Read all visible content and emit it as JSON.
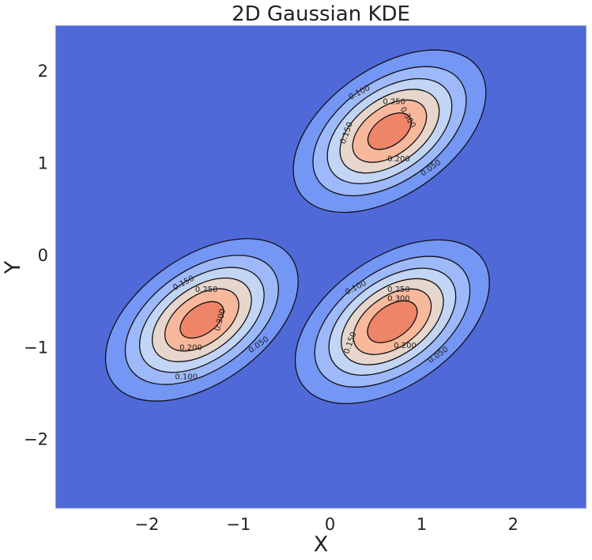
{
  "chart_data": {
    "type": "contour",
    "title": "2D Gaussian KDE",
    "xlabel": "X",
    "ylabel": "Y",
    "xlim": [
      -3.0,
      2.8
    ],
    "ylim": [
      -2.75,
      2.5
    ],
    "xticks": [
      -2,
      -1,
      0,
      1,
      2
    ],
    "yticks": [
      -2,
      -1,
      0,
      1,
      2
    ],
    "xtick_labels": [
      "−2",
      "−1",
      "0",
      "1",
      "2"
    ],
    "ytick_labels": [
      "−2",
      "−1",
      "0",
      "1",
      "2"
    ],
    "grid": false,
    "colormap": "coolwarm",
    "levels": [
      0.0,
      0.05,
      0.1,
      0.15,
      0.2,
      0.25,
      0.3
    ],
    "level_colors": [
      "#4f69d9",
      "#7496f5",
      "#9db9fa",
      "#c3d5f4",
      "#e6d6cc",
      "#f7b89c",
      "#ee8468"
    ],
    "peaks": [
      {
        "x": 0.65,
        "y": 1.35,
        "peak_density": 0.33
      },
      {
        "x": -1.4,
        "y": -0.7,
        "peak_density": 0.33
      },
      {
        "x": 0.68,
        "y": -0.72,
        "peak_density": 0.34
      }
    ],
    "contour_labels": [
      {
        "text": "0.100",
        "x": 0.32,
        "y": 1.77,
        "angle": -28
      },
      {
        "text": "0.250",
        "x": 0.7,
        "y": 1.67,
        "angle": 0
      },
      {
        "text": "0.300",
        "x": 0.85,
        "y": 1.5,
        "angle": 60
      },
      {
        "text": "0.150",
        "x": 0.18,
        "y": 1.33,
        "angle": -70
      },
      {
        "text": "0.200",
        "x": 0.75,
        "y": 1.05,
        "angle": 0
      },
      {
        "text": "0.050",
        "x": 1.1,
        "y": 0.95,
        "angle": -35
      },
      {
        "text": "0.150",
        "x": -1.6,
        "y": -0.3,
        "angle": -28
      },
      {
        "text": "0.250",
        "x": -1.35,
        "y": -0.37,
        "angle": 0
      },
      {
        "text": "0.300",
        "x": -1.2,
        "y": -0.7,
        "angle": -75
      },
      {
        "text": "0.200",
        "x": -1.52,
        "y": -1.0,
        "angle": 0
      },
      {
        "text": "0.050",
        "x": -0.78,
        "y": -0.97,
        "angle": -35
      },
      {
        "text": "0.100",
        "x": -1.57,
        "y": -1.32,
        "angle": 0
      },
      {
        "text": "0.100",
        "x": 0.28,
        "y": -0.35,
        "angle": -28
      },
      {
        "text": "0.250",
        "x": 0.75,
        "y": -0.37,
        "angle": 0
      },
      {
        "text": "0.300",
        "x": 0.75,
        "y": -0.47,
        "angle": 0
      },
      {
        "text": "0.150",
        "x": 0.22,
        "y": -0.95,
        "angle": -70
      },
      {
        "text": "0.200",
        "x": 0.82,
        "y": -0.98,
        "angle": 0
      },
      {
        "text": "0.050",
        "x": 1.18,
        "y": -1.08,
        "angle": -35
      }
    ]
  }
}
